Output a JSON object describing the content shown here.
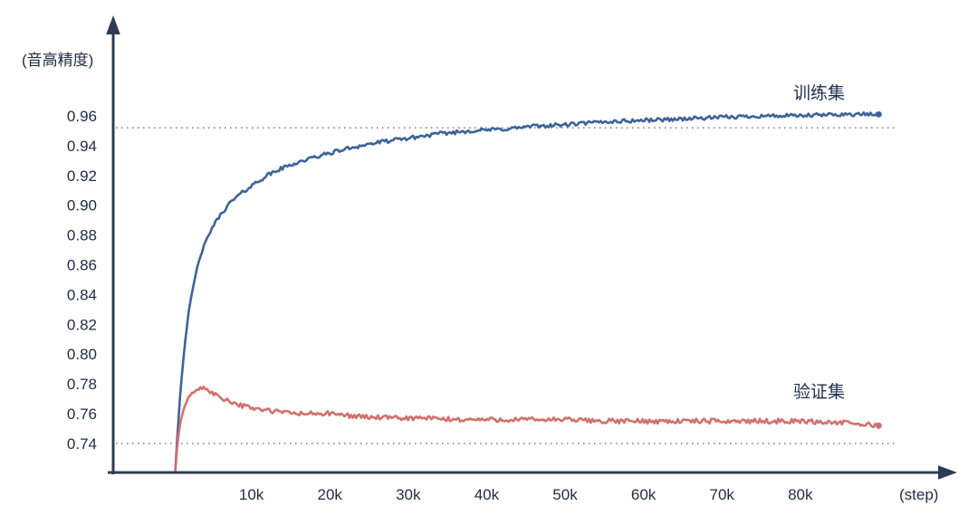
{
  "chart_data": {
    "type": "line",
    "title": "",
    "ylabel": "(音高精度)",
    "xlabel": "(step)",
    "xlim": [
      0,
      90000
    ],
    "ylim": [
      0.72,
      0.98
    ],
    "grid": false,
    "legend_position": "inline-annotations",
    "reference_lines": [
      0.952,
      0.74
    ],
    "x_ticks": [
      {
        "value": 10000,
        "label": "10k"
      },
      {
        "value": 20000,
        "label": "20k"
      },
      {
        "value": 30000,
        "label": "30k"
      },
      {
        "value": 40000,
        "label": "40k"
      },
      {
        "value": 50000,
        "label": "50k"
      },
      {
        "value": 60000,
        "label": "60k"
      },
      {
        "value": 70000,
        "label": "70k"
      },
      {
        "value": 80000,
        "label": "80k"
      }
    ],
    "y_ticks": [
      {
        "value": 0.96,
        "label": "0.96"
      },
      {
        "value": 0.94,
        "label": "0.94"
      },
      {
        "value": 0.92,
        "label": "0.92"
      },
      {
        "value": 0.9,
        "label": "0.90"
      },
      {
        "value": 0.88,
        "label": "0.88"
      },
      {
        "value": 0.86,
        "label": "0.86"
      },
      {
        "value": 0.84,
        "label": "0.84"
      },
      {
        "value": 0.82,
        "label": "0.82"
      },
      {
        "value": 0.8,
        "label": "0.80"
      },
      {
        "value": 0.78,
        "label": "0.78"
      },
      {
        "value": 0.76,
        "label": "0.76"
      },
      {
        "value": 0.74,
        "label": "0.74"
      }
    ],
    "colors": {
      "axis": "#2e3b55",
      "text": "#222d45",
      "train": "#3d6499",
      "validation": "#d0716e",
      "dotted": "#6e6e6e",
      "background": "#ffffff"
    },
    "series": [
      {
        "id": "train",
        "name": "训练集",
        "color": "#3d6499",
        "noise": 0.0013,
        "points": [
          [
            300,
            0.722
          ],
          [
            600,
            0.748
          ],
          [
            1000,
            0.778
          ],
          [
            1500,
            0.806
          ],
          [
            2000,
            0.828
          ],
          [
            2500,
            0.843
          ],
          [
            3000,
            0.856
          ],
          [
            3500,
            0.866
          ],
          [
            4000,
            0.873
          ],
          [
            5000,
            0.885
          ],
          [
            6000,
            0.893
          ],
          [
            7000,
            0.9
          ],
          [
            8000,
            0.905
          ],
          [
            9000,
            0.909
          ],
          [
            10000,
            0.913
          ],
          [
            12000,
            0.92
          ],
          [
            14000,
            0.925
          ],
          [
            16000,
            0.929
          ],
          [
            18000,
            0.932
          ],
          [
            20000,
            0.935
          ],
          [
            23000,
            0.939
          ],
          [
            26000,
            0.942
          ],
          [
            30000,
            0.945
          ],
          [
            34000,
            0.948
          ],
          [
            38000,
            0.95
          ],
          [
            42000,
            0.951
          ],
          [
            46000,
            0.953
          ],
          [
            50000,
            0.954
          ],
          [
            55000,
            0.956
          ],
          [
            60000,
            0.957
          ],
          [
            65000,
            0.958
          ],
          [
            70000,
            0.959
          ],
          [
            75000,
            0.96
          ],
          [
            80000,
            0.96
          ],
          [
            85000,
            0.961
          ],
          [
            90000,
            0.961
          ]
        ]
      },
      {
        "id": "validation",
        "name": "验证集",
        "color": "#d0716e",
        "noise": 0.0016,
        "points": [
          [
            300,
            0.721
          ],
          [
            600,
            0.742
          ],
          [
            1000,
            0.756
          ],
          [
            1500,
            0.765
          ],
          [
            2000,
            0.771
          ],
          [
            2500,
            0.774
          ],
          [
            3000,
            0.776
          ],
          [
            3500,
            0.777
          ],
          [
            4000,
            0.777
          ],
          [
            4500,
            0.776
          ],
          [
            5000,
            0.774
          ],
          [
            6000,
            0.771
          ],
          [
            7000,
            0.769
          ],
          [
            8000,
            0.767
          ],
          [
            9000,
            0.765
          ],
          [
            10000,
            0.764
          ],
          [
            12000,
            0.762
          ],
          [
            14000,
            0.761
          ],
          [
            16000,
            0.76
          ],
          [
            18000,
            0.76
          ],
          [
            20000,
            0.76
          ],
          [
            24000,
            0.758
          ],
          [
            28000,
            0.757
          ],
          [
            32000,
            0.757
          ],
          [
            36000,
            0.756
          ],
          [
            40000,
            0.756
          ],
          [
            45000,
            0.756
          ],
          [
            50000,
            0.756
          ],
          [
            55000,
            0.755
          ],
          [
            60000,
            0.755
          ],
          [
            65000,
            0.755
          ],
          [
            70000,
            0.755
          ],
          [
            75000,
            0.755
          ],
          [
            80000,
            0.755
          ],
          [
            85000,
            0.754
          ],
          [
            90000,
            0.752
          ]
        ]
      }
    ]
  }
}
